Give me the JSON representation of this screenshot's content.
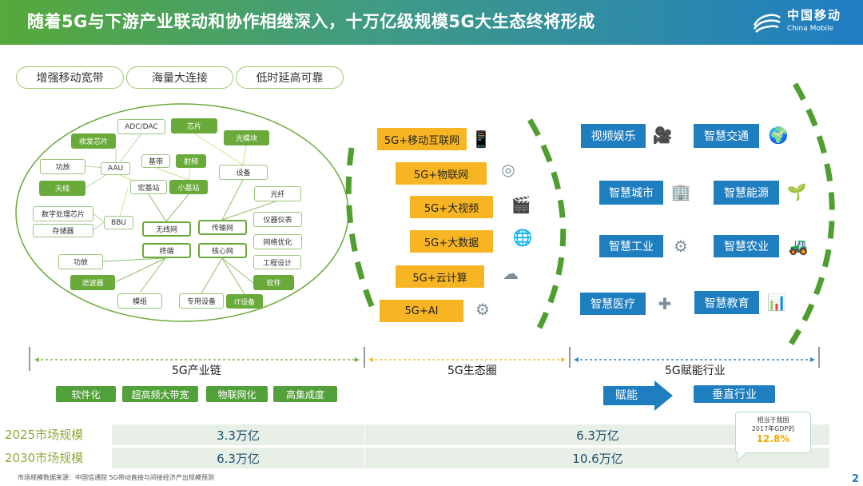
{
  "header": {
    "title": "随着5G与下游产业联动和协作相继深入，十万亿级规模5G大生态终将形成",
    "logo_cn": "中国移动",
    "logo_en": "China Mobile"
  },
  "pills": [
    "增强移动宽带",
    "海量大连接",
    "低时延高可靠"
  ],
  "chain_nodes": {
    "adc": "ADC/DAC",
    "chip": "芯片",
    "transceiver": "收发芯片",
    "optical_module": "光模块",
    "pa1": "功放",
    "aau": "AAU",
    "baseband": "基带",
    "rf": "射频",
    "equipment": "设备",
    "antenna": "天线",
    "macro": "宏基站",
    "small": "小基站",
    "fiber": "光纤",
    "dsp": "数字处理芯片",
    "storage": "存储器",
    "bbu": "BBU",
    "ran": "无线网",
    "transport": "传输网",
    "instruments": "仪器仪表",
    "optimization": "网络优化",
    "terminal": "终端",
    "core": "核心网",
    "engineering": "工程设计",
    "pa2": "功放",
    "software": "软件",
    "filter": "滤波器",
    "module": "模组",
    "dedicated": "专用设备",
    "it": "IT设备"
  },
  "ecosystem": [
    {
      "label": "5G+移动互联网",
      "icon": "mobile-internet-icon"
    },
    {
      "label": "5G+物联网",
      "icon": "iot-icon"
    },
    {
      "label": "5G+大视频",
      "icon": "video-icon"
    },
    {
      "label": "5G+大数据",
      "icon": "big-data-icon"
    },
    {
      "label": "5G+云计算",
      "icon": "cloud-icon"
    },
    {
      "label": "5G+AI",
      "icon": "ai-icon"
    }
  ],
  "industries": [
    {
      "label": "视频娱乐",
      "icon": "camera-icon"
    },
    {
      "label": "智慧交通",
      "icon": "globe-icon"
    },
    {
      "label": "智慧城市",
      "icon": "city-icon"
    },
    {
      "label": "智慧能源",
      "icon": "energy-icon"
    },
    {
      "label": "智慧工业",
      "icon": "gears-icon"
    },
    {
      "label": "智慧农业",
      "icon": "tractor-icon"
    },
    {
      "label": "智慧医疗",
      "icon": "medical-icon"
    },
    {
      "label": "智慧教育",
      "icon": "education-icon"
    }
  ],
  "sections": {
    "chain": "5G产业链",
    "eco": "5G生态圈",
    "industry": "5G赋能行业"
  },
  "chain_tags": [
    "软件化",
    "超高频大带宽",
    "物联网化",
    "高集成度"
  ],
  "empower": "赋能",
  "vertical": "垂直行业",
  "market": [
    {
      "label": "2025市场规模",
      "chain": "3.3万亿",
      "total": "6.3万亿"
    },
    {
      "label": "2030市场规模",
      "chain": "6.3万亿",
      "total": "10.6万亿"
    }
  ],
  "callout": {
    "line1": "相当于我国",
    "line2": "2017年GDP的",
    "value": "12.8%"
  },
  "footnote": "市场规模数据来源：中国信通院 5G带动直接与间接经济产出规模预测",
  "page_number": "2",
  "colors": {
    "green": "#6aaa3a",
    "yellow": "#f7b523",
    "blue": "#1f7ec0"
  }
}
